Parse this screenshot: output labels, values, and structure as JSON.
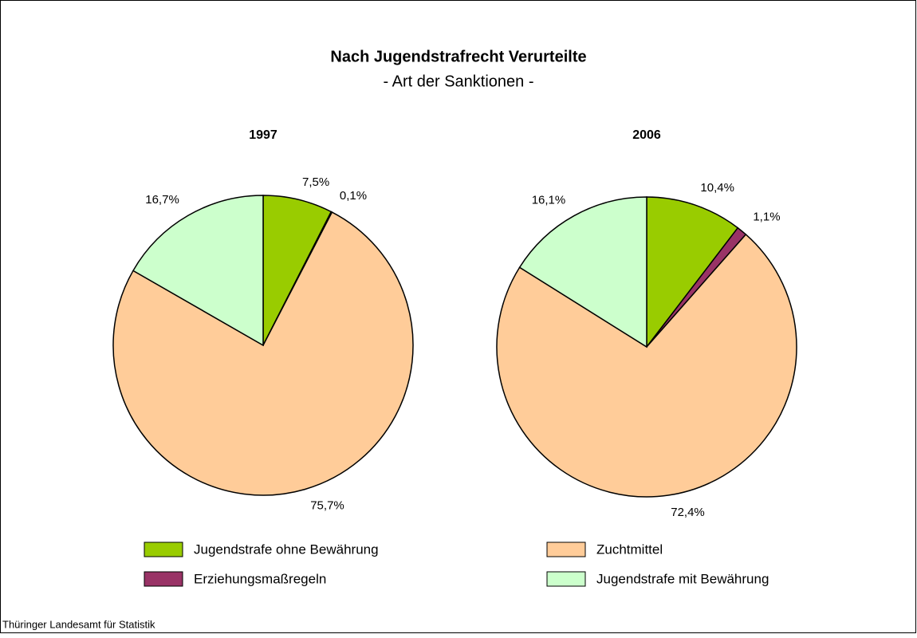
{
  "title": "Nach Jugendstrafrecht Verurteilte",
  "subtitle": "- Art der Sanktionen -",
  "source": "Thüringer Landesamt für Statistik",
  "legend": {
    "entries": [
      "Jugendstrafe ohne Bewährung",
      "Erziehungsmaßregeln",
      "Zuchtmittel",
      "Jugendstrafe mit Bewährung"
    ],
    "colors": [
      "#99cc00",
      "#993366",
      "#ffcc99",
      "#ccffcc"
    ]
  },
  "chart_data": [
    {
      "type": "pie",
      "title": "1997",
      "values": [
        7.5,
        0.1,
        75.7,
        16.7
      ],
      "value_labels": [
        "7,5%",
        "0,1%",
        "75,7%",
        "16,7%"
      ]
    },
    {
      "type": "pie",
      "title": "2006",
      "values": [
        10.4,
        1.1,
        72.4,
        16.1
      ],
      "value_labels": [
        "10,4%",
        "1,1%",
        "72,4%",
        "16,1%"
      ]
    }
  ]
}
